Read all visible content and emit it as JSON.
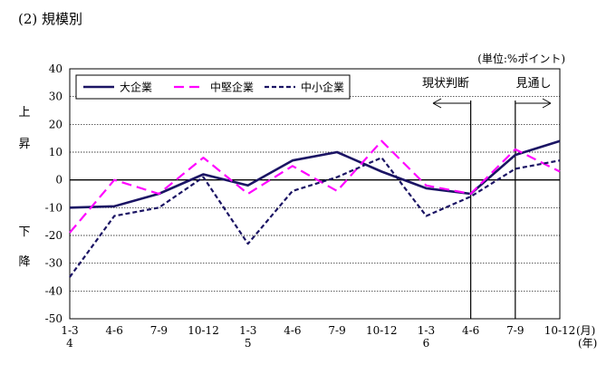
{
  "heading": "(2) 規模別",
  "chart_data": {
    "type": "line",
    "title": "",
    "unit_label": "(単位:%ポイント)",
    "categories": [
      "1-3",
      "4-6",
      "7-9",
      "10-12",
      "1-3",
      "4-6",
      "7-9",
      "10-12",
      "1-3",
      "4-6",
      "7-9",
      "10-12"
    ],
    "year_labels": [
      {
        "index": 0,
        "label": "4"
      },
      {
        "index": 4,
        "label": "5"
      },
      {
        "index": 8,
        "label": "6"
      }
    ],
    "month_suffix": "(月)",
    "year_suffix": "(年)",
    "ylim": [
      -50,
      40
    ],
    "yticks": [
      40,
      30,
      20,
      10,
      0,
      -10,
      -20,
      -30,
      -40,
      -50
    ],
    "grid": true,
    "legend_position": "top-left",
    "side_label_up": [
      "上",
      "昇"
    ],
    "side_label_down": [
      "下",
      "降"
    ],
    "annotations": {
      "current": {
        "label": "現状判断",
        "at_index": 9
      },
      "outlook": {
        "label": "見通し",
        "at_index": 10
      }
    },
    "series": [
      {
        "name": "大企業",
        "color": "#1b1464",
        "dash": "solid",
        "values": [
          -10,
          -9.5,
          -5,
          2,
          -2,
          7,
          10,
          3,
          -3,
          -5,
          9,
          14
        ]
      },
      {
        "name": "中堅企業",
        "color": "#ff00ff",
        "dash": "long-dash",
        "values": [
          -19,
          0,
          -5,
          8,
          -5,
          5,
          -4,
          14,
          -2,
          -5,
          11,
          3
        ]
      },
      {
        "name": "中小企業",
        "color": "#1b1464",
        "dash": "short-dash",
        "values": [
          -35,
          -13,
          -10,
          1,
          -23,
          -4,
          1,
          8,
          -13,
          -6,
          4,
          7
        ]
      }
    ]
  }
}
